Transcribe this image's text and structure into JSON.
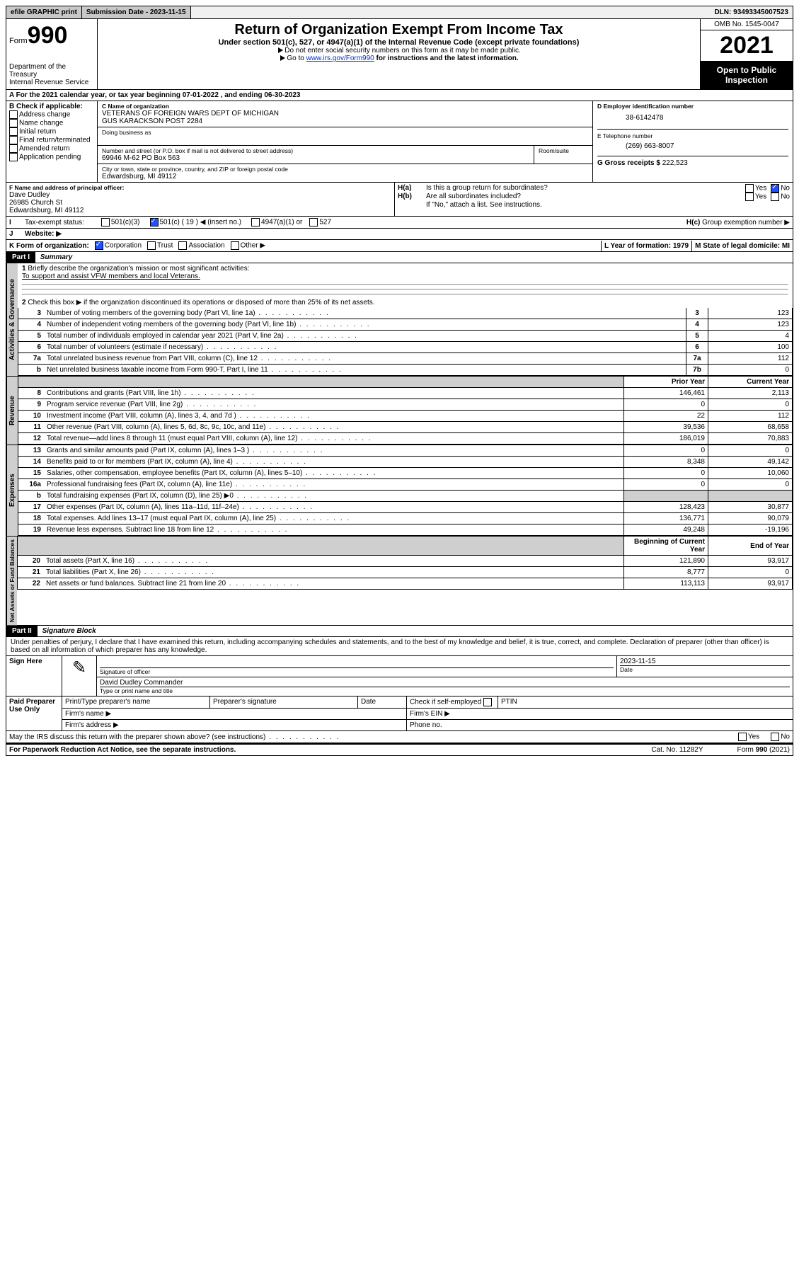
{
  "topbar": {
    "efile_label": "efile GRAPHIC print",
    "submission_label": "Submission Date - 2023-11-15",
    "dln_label": "DLN: 93493345007523"
  },
  "header": {
    "form_prefix": "Form",
    "form_number": "990",
    "dept": "Department of the Treasury",
    "irs": "Internal Revenue Service",
    "title": "Return of Organization Exempt From Income Tax",
    "sub": "Under section 501(c), 527, or 4947(a)(1) of the Internal Revenue Code (except private foundations)",
    "note1": "Do not enter social security numbers on this form as it may be made public.",
    "note2_prefix": "Go to ",
    "note2_link": "www.irs.gov/Form990",
    "note2_suffix": " for instructions and the latest information.",
    "omb": "OMB No. 1545-0047",
    "year": "2021",
    "open": "Open to Public Inspection"
  },
  "A": {
    "text": "A For the 2021 calendar year, or tax year beginning 07-01-2022   , and ending 06-30-2023"
  },
  "B": {
    "title": "B Check if applicable:",
    "opts": [
      "Address change",
      "Name change",
      "Initial return",
      "Final return/terminated",
      "Amended return",
      "Application pending"
    ]
  },
  "C": {
    "label": "C Name of organization",
    "name": "VETERANS OF FOREIGN WARS DEPT OF MICHIGAN",
    "name2": "GUS KARACKSON POST 2284",
    "dba_label": "Doing business as",
    "street_label": "Number and street (or P.O. box if mail is not delivered to street address)",
    "room_label": "Room/suite",
    "street": "69946 M-62 PO Box 563",
    "city_label": "City or town, state or province, country, and ZIP or foreign postal code",
    "city": "Edwardsburg, MI  49112"
  },
  "D": {
    "label": "D Employer identification number",
    "value": "38-6142478"
  },
  "E": {
    "label": "E Telephone number",
    "value": "(269) 663-8007"
  },
  "G": {
    "label": "G Gross receipts $",
    "value": "222,523"
  },
  "F": {
    "label": "F Name and address of principal officer:",
    "name": "Dave Dudley",
    "street": "26985 Church St",
    "city": "Edwardsburg, MI  49112"
  },
  "H": {
    "a": "Is this a group return for subordinates?",
    "b": "Are all subordinates included?",
    "bnote": "If \"No,\" attach a list. See instructions.",
    "c": "Group exemption number ▶",
    "yes": "Yes",
    "no": "No"
  },
  "I": {
    "label": "Tax-exempt status:",
    "c19": "501(c) ( 19 ) ◀ (insert no.)",
    "c501c3": "501(c)(3)",
    "c4947": "4947(a)(1) or",
    "c527": "527"
  },
  "J": {
    "label": "Website: ▶"
  },
  "K": {
    "label": "K Form of organization:",
    "corp": "Corporation",
    "trust": "Trust",
    "assoc": "Association",
    "other": "Other ▶"
  },
  "L": {
    "label": "L Year of formation: 1979"
  },
  "M": {
    "label": "M State of legal domicile: MI"
  },
  "part1": {
    "header": "Part I",
    "title": "Summary",
    "q1": "Briefly describe the organization's mission or most significant activities:",
    "q1ans": "To support and assist VFW members and local Veterans.",
    "q2": "Check this box ▶  if the organization discontinued its operations or disposed of more than 25% of its net assets.",
    "lines": [
      {
        "n": "3",
        "t": "Number of voting members of the governing body (Part VI, line 1a)",
        "box": "3",
        "v": "123"
      },
      {
        "n": "4",
        "t": "Number of independent voting members of the governing body (Part VI, line 1b)",
        "box": "4",
        "v": "123"
      },
      {
        "n": "5",
        "t": "Total number of individuals employed in calendar year 2021 (Part V, line 2a)",
        "box": "5",
        "v": "4"
      },
      {
        "n": "6",
        "t": "Total number of volunteers (estimate if necessary)",
        "box": "6",
        "v": "100"
      },
      {
        "n": "7a",
        "t": "Total unrelated business revenue from Part VIII, column (C), line 12",
        "box": "7a",
        "v": "112"
      },
      {
        "n": "b",
        "t": "Net unrelated business taxable income from Form 990-T, Part I, line 11",
        "box": "7b",
        "v": "0"
      }
    ],
    "col_prior": "Prior Year",
    "col_curr": "Current Year",
    "revenue": [
      {
        "n": "8",
        "t": "Contributions and grants (Part VIII, line 1h)",
        "p": "146,461",
        "c": "2,113"
      },
      {
        "n": "9",
        "t": "Program service revenue (Part VIII, line 2g)",
        "p": "0",
        "c": "0"
      },
      {
        "n": "10",
        "t": "Investment income (Part VIII, column (A), lines 3, 4, and 7d )",
        "p": "22",
        "c": "112"
      },
      {
        "n": "11",
        "t": "Other revenue (Part VIII, column (A), lines 5, 6d, 8c, 9c, 10c, and 11e)",
        "p": "39,536",
        "c": "68,658"
      },
      {
        "n": "12",
        "t": "Total revenue—add lines 8 through 11 (must equal Part VIII, column (A), line 12)",
        "p": "186,019",
        "c": "70,883"
      }
    ],
    "expenses": [
      {
        "n": "13",
        "t": "Grants and similar amounts paid (Part IX, column (A), lines 1–3 )",
        "p": "0",
        "c": "0"
      },
      {
        "n": "14",
        "t": "Benefits paid to or for members (Part IX, column (A), line 4)",
        "p": "8,348",
        "c": "49,142"
      },
      {
        "n": "15",
        "t": "Salaries, other compensation, employee benefits (Part IX, column (A), lines 5–10)",
        "p": "0",
        "c": "10,060"
      },
      {
        "n": "16a",
        "t": "Professional fundraising fees (Part IX, column (A), line 11e)",
        "p": "0",
        "c": "0"
      },
      {
        "n": "b",
        "t": "Total fundraising expenses (Part IX, column (D), line 25) ▶0",
        "p": "",
        "c": "",
        "shade": true
      },
      {
        "n": "17",
        "t": "Other expenses (Part IX, column (A), lines 11a–11d, 11f–24e)",
        "p": "128,423",
        "c": "30,877"
      },
      {
        "n": "18",
        "t": "Total expenses. Add lines 13–17 (must equal Part IX, column (A), line 25)",
        "p": "136,771",
        "c": "90,079"
      },
      {
        "n": "19",
        "t": "Revenue less expenses. Subtract line 18 from line 12",
        "p": "49,248",
        "c": "-19,196"
      }
    ],
    "col_boy": "Beginning of Current Year",
    "col_eoy": "End of Year",
    "netassets": [
      {
        "n": "20",
        "t": "Total assets (Part X, line 16)",
        "p": "121,890",
        "c": "93,917"
      },
      {
        "n": "21",
        "t": "Total liabilities (Part X, line 26)",
        "p": "8,777",
        "c": "0"
      },
      {
        "n": "22",
        "t": "Net assets or fund balances. Subtract line 21 from line 20",
        "p": "113,113",
        "c": "93,917"
      }
    ]
  },
  "part2": {
    "header": "Part II",
    "title": "Signature Block",
    "decl": "Under penalties of perjury, I declare that I have examined this return, including accompanying schedules and statements, and to the best of my knowledge and belief, it is true, correct, and complete. Declaration of preparer (other than officer) is based on all information of which preparer has any knowledge.",
    "sign": "Sign Here",
    "sig_officer": "Signature of officer",
    "sig_date": "Date",
    "sig_date_val": "2023-11-15",
    "printed_name": "David Dudley Commander",
    "printed_label": "Type or print name and title",
    "paid": "Paid Preparer Use Only",
    "prep_name": "Print/Type preparer's name",
    "prep_sig": "Preparer's signature",
    "prep_date": "Date",
    "prep_self": "Check  if self-employed",
    "ptin": "PTIN",
    "firm_name": "Firm's name  ▶",
    "firm_ein": "Firm's EIN ▶",
    "firm_addr": "Firm's address ▶",
    "firm_phone": "Phone no.",
    "discuss": "May the IRS discuss this return with the preparer shown above? (see instructions)"
  },
  "footer": {
    "pra": "For Paperwork Reduction Act Notice, see the separate instructions.",
    "cat": "Cat. No. 11282Y",
    "form": "Form 990 (2021)"
  },
  "vtabs": {
    "ag": "Activities & Governance",
    "rev": "Revenue",
    "exp": "Expenses",
    "na": "Net Assets or Fund Balances"
  }
}
